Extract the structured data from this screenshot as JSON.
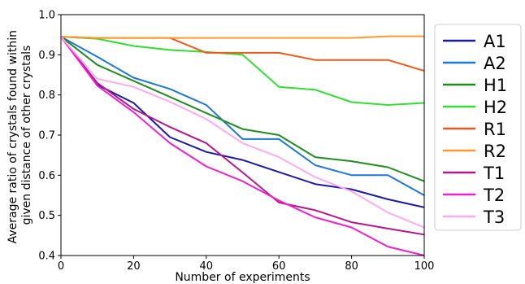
{
  "chart_data": {
    "type": "line",
    "xlabel": "Number of experiments",
    "ylabel": [
      "Average ratio of crystals found within",
      "given distance of other crystals"
    ],
    "xlim": [
      0,
      100
    ],
    "ylim": [
      0.4,
      1.0
    ],
    "xticks": [
      0,
      20,
      40,
      60,
      80,
      100
    ],
    "yticks": [
      0.4,
      0.5,
      0.6,
      0.7,
      0.8,
      0.9,
      1.0
    ],
    "grid": false,
    "legend_position": "outside-right",
    "x": [
      0,
      10,
      20,
      30,
      40,
      50,
      60,
      70,
      80,
      90,
      100
    ],
    "series": [
      {
        "name": "A1",
        "color": "#1a1aa6",
        "values": [
          0.945,
          0.825,
          0.78,
          0.695,
          0.658,
          0.638,
          0.608,
          0.578,
          0.565,
          0.54,
          0.52
        ]
      },
      {
        "name": "A2",
        "color": "#1f77d8",
        "values": [
          0.945,
          0.895,
          0.843,
          0.815,
          0.775,
          0.69,
          0.69,
          0.625,
          0.6,
          0.6,
          0.55
        ]
      },
      {
        "name": "H1",
        "color": "#228b22",
        "values": [
          0.945,
          0.875,
          0.835,
          0.795,
          0.755,
          0.715,
          0.7,
          0.645,
          0.635,
          0.62,
          0.585
        ]
      },
      {
        "name": "H2",
        "color": "#33dd33",
        "values": [
          0.945,
          0.94,
          0.922,
          0.912,
          0.907,
          0.9,
          0.82,
          0.813,
          0.782,
          0.775,
          0.78
        ]
      },
      {
        "name": "R1",
        "color": "#ee5a1a",
        "values": [
          0.945,
          0.942,
          0.942,
          0.942,
          0.905,
          0.905,
          0.905,
          0.887,
          0.887,
          0.887,
          0.86
        ]
      },
      {
        "name": "R2",
        "color": "#ff9a33",
        "values": [
          0.945,
          0.942,
          0.942,
          0.942,
          0.942,
          0.942,
          0.942,
          0.942,
          0.942,
          0.946,
          0.946
        ]
      },
      {
        "name": "T1",
        "color": "#b5178c",
        "values": [
          0.945,
          0.83,
          0.765,
          0.72,
          0.68,
          0.607,
          0.532,
          0.513,
          0.483,
          0.467,
          0.452
        ]
      },
      {
        "name": "T2",
        "color": "#ee22cc",
        "values": [
          0.945,
          0.823,
          0.757,
          0.68,
          0.622,
          0.585,
          0.537,
          0.495,
          0.47,
          0.422,
          0.4
        ]
      },
      {
        "name": "T3",
        "color": "#ffaaf0",
        "values": [
          0.945,
          0.84,
          0.82,
          0.783,
          0.74,
          0.68,
          0.645,
          0.595,
          0.56,
          0.507,
          0.47
        ]
      }
    ]
  }
}
